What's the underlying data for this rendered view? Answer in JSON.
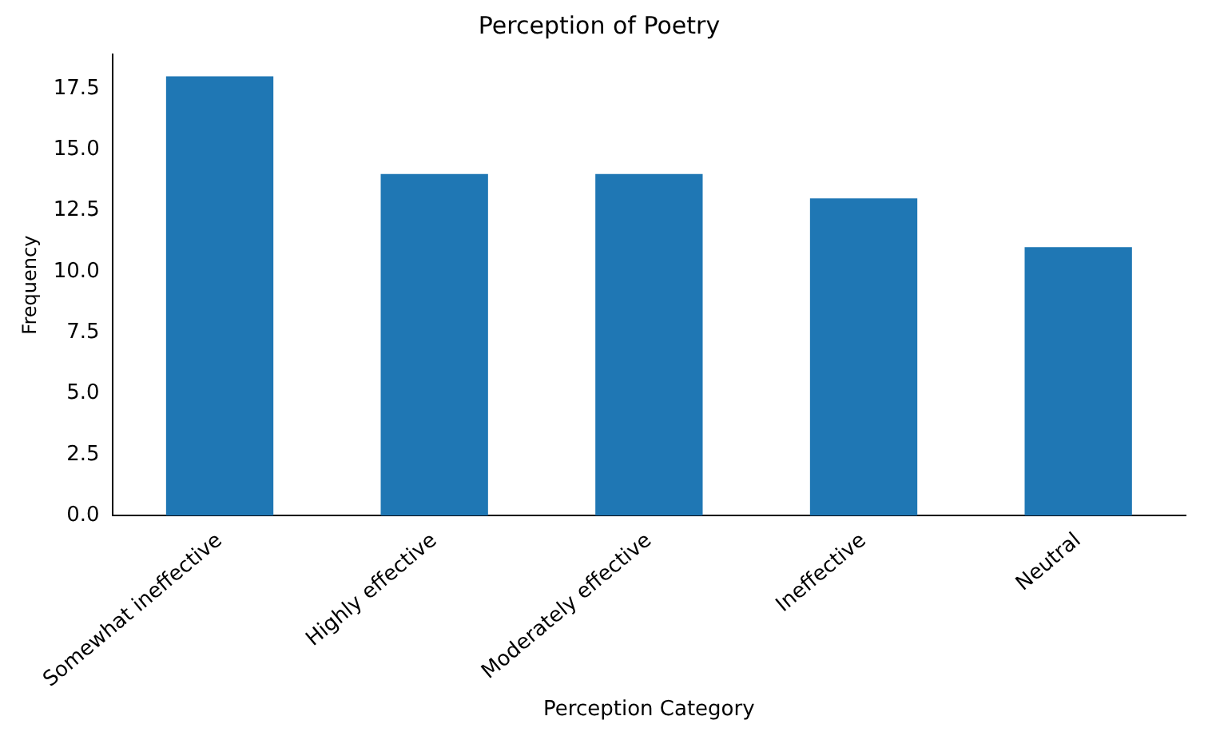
{
  "chart_data": {
    "type": "bar",
    "title": "Perception of Poetry",
    "xlabel": "Perception Category",
    "ylabel": "Frequency",
    "categories": [
      "Somewhat ineffective",
      "Highly effective",
      "Moderately effective",
      "Ineffective",
      "Neutral"
    ],
    "values": [
      18,
      14,
      14,
      13,
      11
    ],
    "color": "#1f77b4",
    "ylim": [
      0,
      18.9
    ],
    "yticks": [
      {
        "value": 0,
        "label": "0.0"
      },
      2.5,
      {
        "value": 5,
        "label": "5.0"
      },
      7.5,
      {
        "value": 10,
        "label": "10.0"
      },
      12.5,
      {
        "value": 15,
        "label": "15.0"
      },
      17.5
    ],
    "grid": false,
    "legend": false
  }
}
